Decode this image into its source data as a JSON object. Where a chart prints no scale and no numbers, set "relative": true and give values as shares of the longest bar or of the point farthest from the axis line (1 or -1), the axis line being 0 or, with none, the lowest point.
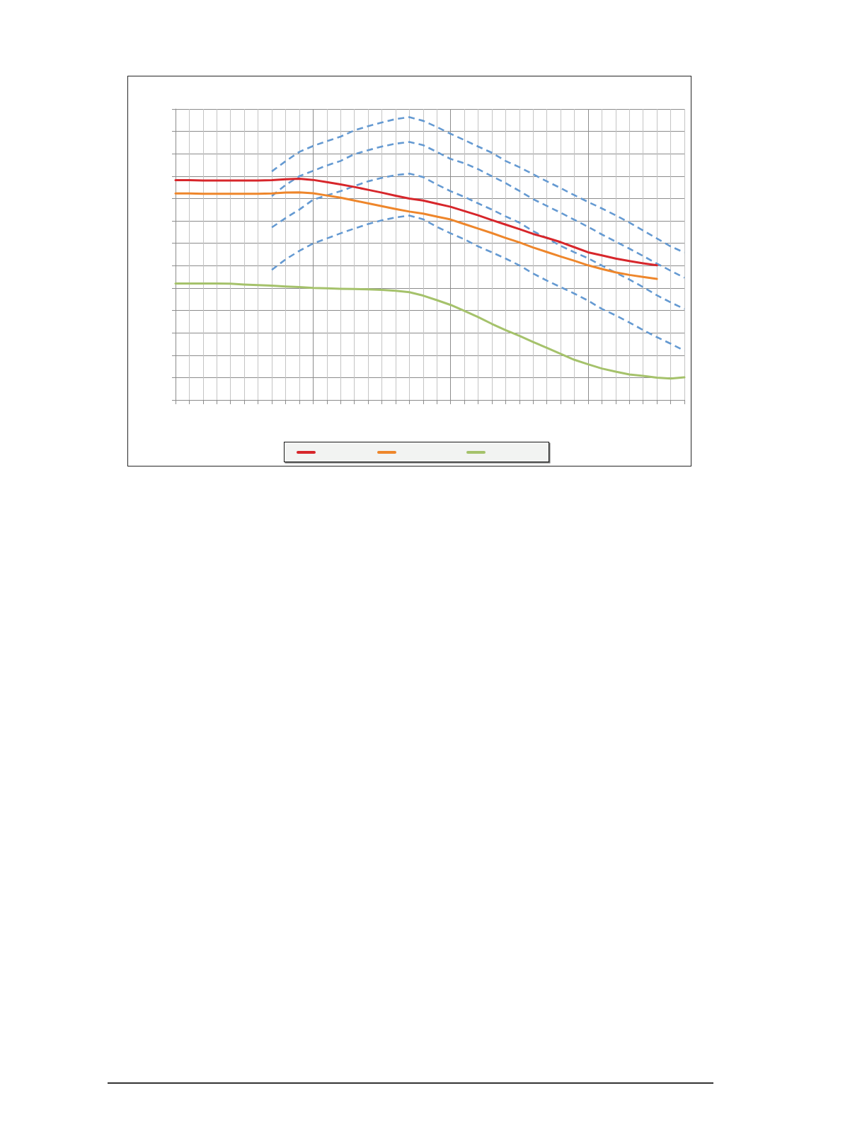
{
  "chart_data": {
    "type": "line",
    "relative": true,
    "grid": true,
    "marker": "none",
    "categories": [
      null,
      null,
      null,
      null,
      null,
      null,
      null,
      null,
      null,
      null,
      null,
      null,
      null,
      null,
      null,
      null,
      null,
      null,
      null,
      null,
      null,
      null,
      null,
      null,
      null,
      null,
      null,
      null,
      null,
      null,
      null,
      null,
      null,
      null,
      null,
      null,
      null,
      null
    ],
    "series": [
      {
        "color": "#d7262b",
        "values": [
          0.777,
          0.777,
          0.776,
          0.776,
          0.776,
          0.776,
          0.776,
          0.777,
          0.78,
          0.782,
          0.778,
          0.77,
          0.762,
          0.753,
          0.743,
          0.733,
          0.722,
          0.712,
          0.705,
          0.694,
          0.683,
          0.668,
          0.653,
          0.636,
          0.62,
          0.604,
          0.587,
          0.573,
          0.558,
          0.54,
          0.522,
          0.511,
          0.5,
          0.491,
          0.483,
          0.476,
          null,
          null
        ]
      },
      {
        "color": "#ee862b",
        "values": [
          0.73,
          0.73,
          0.729,
          0.729,
          0.729,
          0.729,
          0.729,
          0.73,
          0.733,
          0.734,
          0.731,
          0.723,
          0.715,
          0.705,
          0.695,
          0.685,
          0.675,
          0.666,
          0.659,
          0.648,
          0.638,
          0.622,
          0.606,
          0.59,
          0.573,
          0.557,
          0.539,
          0.523,
          0.507,
          0.492,
          0.476,
          0.463,
          0.451,
          0.442,
          0.435,
          0.428,
          null,
          null
        ]
      },
      {
        "color": "#a5c26b",
        "values": [
          0.412,
          0.412,
          0.412,
          0.412,
          0.411,
          0.408,
          0.406,
          0.404,
          0.401,
          0.399,
          0.396,
          0.395,
          0.393,
          0.392,
          0.391,
          0.389,
          0.386,
          0.381,
          0.369,
          0.353,
          0.336,
          0.315,
          0.293,
          0.269,
          0.247,
          0.227,
          0.205,
          0.184,
          0.163,
          0.142,
          0.126,
          0.111,
          0.1,
          0.09,
          0.085,
          0.079,
          0.076,
          0.08
        ]
      },
      {
        "color": "#659ad2",
        "line_style": "dashed",
        "values": [
          null,
          null,
          null,
          null,
          null,
          null,
          null,
          0.808,
          0.844,
          0.877,
          0.898,
          0.915,
          0.931,
          0.953,
          0.968,
          0.981,
          0.993,
          1,
          0.987,
          0.965,
          0.941,
          0.919,
          0.896,
          0.874,
          0.845,
          0.823,
          0.798,
          0.773,
          0.749,
          0.724,
          0.7,
          0.677,
          0.653,
          0.627,
          0.599,
          0.571,
          0.543,
          0.521
        ]
      },
      {
        "color": "#659ad2",
        "line_style": "dashed",
        "values": [
          null,
          null,
          null,
          null,
          null,
          null,
          null,
          0.721,
          0.76,
          0.791,
          0.81,
          0.829,
          0.845,
          0.869,
          0.883,
          0.896,
          0.906,
          0.912,
          0.901,
          0.877,
          0.852,
          0.837,
          0.816,
          0.791,
          0.767,
          0.739,
          0.71,
          0.686,
          0.662,
          0.637,
          0.612,
          0.585,
          0.56,
          0.535,
          0.509,
          0.482,
          0.457,
          0.432
        ]
      },
      {
        "color": "#659ad2",
        "line_style": "dashed",
        "values": [
          null,
          null,
          null,
          null,
          null,
          null,
          null,
          0.61,
          0.643,
          0.673,
          0.708,
          0.723,
          0.738,
          0.756,
          0.773,
          0.785,
          0.795,
          0.8,
          0.788,
          0.762,
          0.738,
          0.718,
          0.695,
          0.673,
          0.649,
          0.627,
          0.597,
          0.572,
          0.545,
          0.522,
          0.501,
          0.475,
          0.45,
          0.426,
          0.399,
          0.37,
          0.345,
          0.322
        ]
      },
      {
        "color": "#659ad2",
        "line_style": "dashed",
        "values": [
          null,
          null,
          null,
          null,
          null,
          null,
          null,
          0.46,
          0.497,
          0.527,
          0.553,
          0.571,
          0.589,
          0.606,
          0.622,
          0.635,
          0.645,
          0.652,
          0.639,
          0.612,
          0.589,
          0.568,
          0.543,
          0.522,
          0.5,
          0.476,
          0.447,
          0.422,
          0.399,
          0.376,
          0.351,
          0.322,
          0.299,
          0.274,
          0.247,
          0.222,
          0.199,
          0.174
        ]
      }
    ]
  }
}
